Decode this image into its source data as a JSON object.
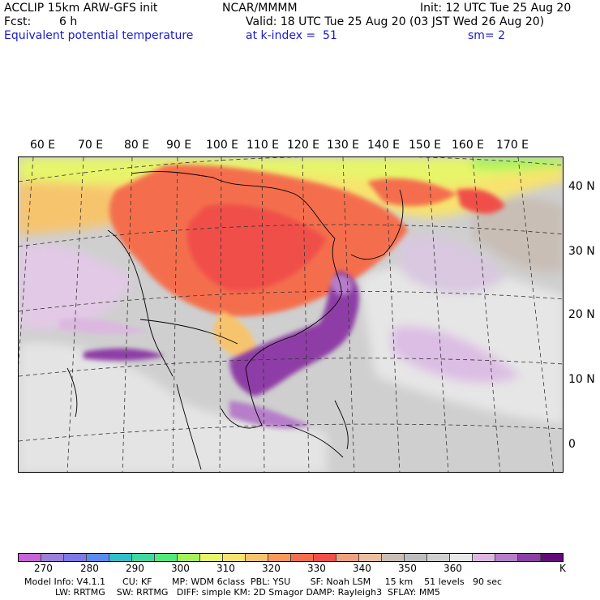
{
  "header": {
    "model_title": "ACCLIP 15km ARW-GFS init",
    "org": "NCAR/MMMM",
    "init": "Init: 12 UTC Tue 25 Aug 20",
    "fcst_label": "Fcst:",
    "fcst_value": "6 h",
    "valid": "Valid: 18 UTC Tue 25 Aug 20 (03 JST Wed 26 Aug 20)",
    "field": "Equivalent potential temperature",
    "level": "at k-index =  51",
    "smoothing": "sm= 2"
  },
  "map": {
    "lon_labels": [
      "60 E",
      "70 E",
      "80 E",
      "90 E",
      "100 E",
      "110 E",
      "120 E",
      "130 E",
      "140 E",
      "150 E",
      "160 E",
      "170 E"
    ],
    "lat_labels": [
      "40 N",
      "30 N",
      "20 N",
      "10 N",
      "0"
    ]
  },
  "colorbar": {
    "colors": [
      "#c663d6",
      "#9b7fd9",
      "#7d79e6",
      "#5a8cf0",
      "#33bfc9",
      "#3fd8a0",
      "#4eea7a",
      "#a6f25a",
      "#e6f56a",
      "#f7e36e",
      "#f7c46e",
      "#f79a5a",
      "#f46e4e",
      "#f0504a",
      "#f0a07a",
      "#e8c0a0",
      "#c8beb6",
      "#bdbdbd",
      "#d0d0d0",
      "#e8e8e8",
      "#dcb8e0",
      "#b67ec9",
      "#8e3ea6",
      "#660a7a"
    ],
    "labels": [
      "270",
      "280",
      "290",
      "300",
      "310",
      "320",
      "330",
      "340",
      "350",
      "360"
    ],
    "unit": "K"
  },
  "footer": {
    "line1": "Model Info: V4.1.1      CU: KF       MP: WDM 6class  PBL: YSU       SF: Noah LSM     15 km    51 levels   90 sec",
    "line2": "LW: RRTMG    SW: RRTMG   DIFF: simple KM: 2D Smagor DAMP: Rayleigh3  SFLAY: MM5"
  }
}
